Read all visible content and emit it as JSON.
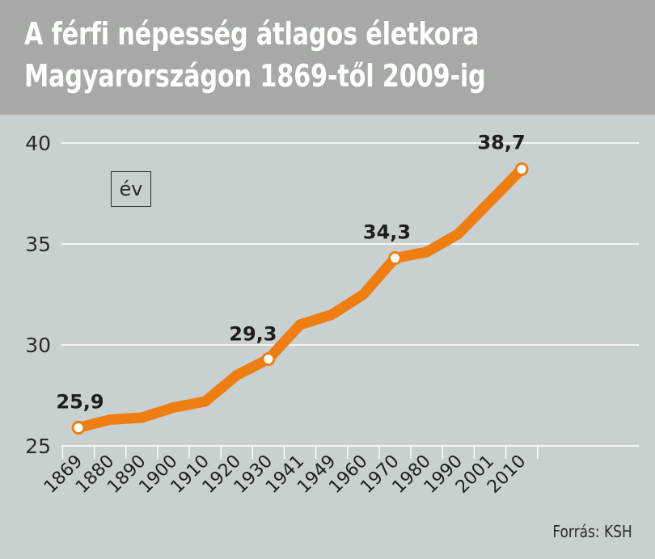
{
  "header": {
    "title_line1": "A férfi népesség átlagos életkora",
    "title_line2": "Magyarországon 1869-től 2009-ig"
  },
  "unit_label": "év",
  "source": "Forrás: KSH",
  "colors": {
    "line": "#ee7d12",
    "background": "#c9d0d2",
    "header": "#a5aaa4",
    "grid": "#ffffff"
  },
  "chart_data": {
    "type": "line",
    "title": "A férfi népesség átlagos életkora Magyarországon 1869-től 2009-ig",
    "ylabel": "év",
    "categories": [
      "1869",
      "1880",
      "1890",
      "1900",
      "1910",
      "1920",
      "1930",
      "1941",
      "1949",
      "1960",
      "1970",
      "1980",
      "1990",
      "2001",
      "2010"
    ],
    "values": [
      25.9,
      26.3,
      26.4,
      26.9,
      27.2,
      28.5,
      29.3,
      31.0,
      31.5,
      32.5,
      34.3,
      34.6,
      35.5,
      37.1,
      38.7
    ],
    "labeled_points": [
      {
        "index": 0,
        "label": "25,9"
      },
      {
        "index": 6,
        "label": "29,3"
      },
      {
        "index": 10,
        "label": "34,3"
      },
      {
        "index": 14,
        "label": "38,7"
      }
    ],
    "yticks": [
      25,
      30,
      35,
      40
    ],
    "ylim": [
      25,
      40
    ],
    "grid": true,
    "legend": "none"
  }
}
